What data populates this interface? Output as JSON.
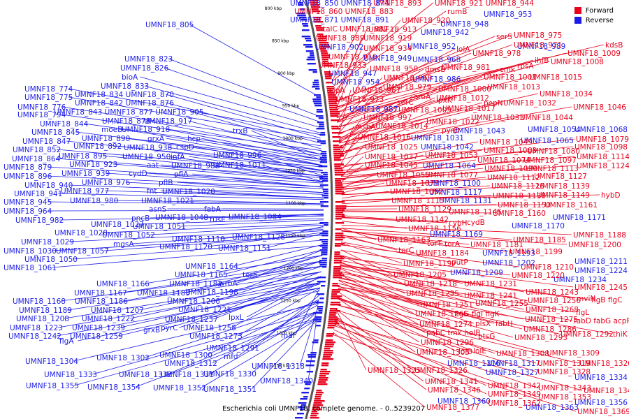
{
  "colors": {
    "forward": "#e8001c",
    "reverse": "#1c1ce8",
    "backbone": "#555555"
  },
  "legend": [
    {
      "label": "Forward",
      "color": "#e8001c"
    },
    {
      "label": "Reverse",
      "color": "#1c1ce8"
    }
  ],
  "caption": "Escherichia coli UMNF18, complete genome. - 0..5239207",
  "ticks": [
    "800 kbp",
    "850 kbp",
    "900 kbp",
    "950 kbp",
    "1000 kbp",
    "1050 kbp",
    "1100 kbp",
    "1150 kbp",
    "1200 kbp",
    "1250 kbp",
    "1300 kbp",
    "1350 kbp"
  ],
  "reverse_labels": [
    [
      "UMNF18_850 UMNF18_874",
      415,
      8
    ],
    [
      "UMNF18_805",
      208,
      39
    ],
    [
      "UMNF18_871 UMNF18_891",
      415,
      32
    ],
    [
      "UMNF18_942",
      602,
      50
    ],
    [
      "UMNF18_948",
      630,
      38
    ],
    [
      "UMNF18_953",
      692,
      24
    ],
    [
      "UMNF18_902",
      451,
      71
    ],
    [
      "UMNF18_952",
      583,
      70
    ],
    [
      "UMNF18_989",
      740,
      70
    ],
    [
      "UMNF18_949",
      520,
      87
    ],
    [
      "UMNF18_968",
      590,
      89
    ],
    [
      "UMNF18_947",
      470,
      109
    ],
    [
      "UMNF18_823",
      178,
      88
    ],
    [
      "UMNF18_826",
      172,
      101
    ],
    [
      "bioA",
      174,
      114
    ],
    [
      "UMNF18_954",
      474,
      121
    ],
    [
      "UMNF18_986",
      590,
      117
    ],
    [
      "UMNF18_833",
      144,
      127
    ],
    [
      "UMNF18_774",
      35,
      131
    ],
    [
      "UMNF18_834 UMNF18_870",
      107,
      139
    ],
    [
      "UMNF18_775",
      35,
      143
    ],
    [
      "UMNF18_842 UMNF18_876",
      107,
      151
    ],
    [
      "UMNF18_776",
      25,
      157
    ],
    [
      "UMNF18_987",
      500,
      160
    ],
    [
      "UMNF18_843 UMNF18_877 UMNF18_905",
      77,
      164
    ],
    [
      "UMNF18_794",
      25,
      168
    ],
    [
      "UMNF18_844",
      57,
      181
    ],
    [
      "UMNF18_878",
      146,
      177
    ],
    [
      "UMNF18_917",
      206,
      177
    ],
    [
      "UMNF18_845",
      45,
      193
    ],
    [
      "moeB",
      145,
      189
    ],
    [
      "UMNF18_918",
      174,
      189
    ],
    [
      "trxB",
      333,
      191
    ],
    [
      "UMNF18_1031",
      588,
      201
    ],
    [
      "UMNF18_1043",
      647,
      191
    ],
    [
      "UMNF18_1054",
      755,
      189
    ],
    [
      "UMNF18_1068",
      822,
      189
    ],
    [
      "UMNF18_847",
      32,
      206
    ],
    [
      "UMNF18_890",
      117,
      202
    ],
    [
      "grxA",
      211,
      202
    ],
    [
      "hcp",
      268,
      202
    ],
    [
      "UMNF18_852",
      18,
      218
    ],
    [
      "UMNF18_892",
      105,
      213
    ],
    [
      "UMNF18_938",
      177,
      215
    ],
    [
      "cspD",
      252,
      214
    ],
    [
      "UMNF18_1042",
      602,
      214
    ],
    [
      "UMNF18_1065",
      745,
      205
    ],
    [
      "UMNF18_864",
      17,
      231
    ],
    [
      "UMNF18_895",
      84,
      227
    ],
    [
      "UMNF18_950",
      175,
      228
    ],
    [
      "infA",
      244,
      228
    ],
    [
      "UMNF18_996",
      305,
      226
    ],
    [
      "UMNF18_879",
      5,
      243
    ],
    [
      "UMNF18_923",
      99,
      239
    ],
    [
      "aat",
      210,
      240
    ],
    [
      "UMNF18_988",
      245,
      241
    ],
    [
      "UMNF18_1011",
      305,
      240
    ],
    [
      "UMNF18_1064",
      605,
      241
    ],
    [
      "UMNF18_896",
      5,
      256
    ],
    [
      "UMNF18_939",
      88,
      252
    ],
    [
      "cydD",
      184,
      252
    ],
    [
      "pflA",
      249,
      253
    ],
    [
      "UMNF18_940",
      35,
      269
    ],
    [
      "UMNF18_976",
      117,
      265
    ],
    [
      "pflB",
      227,
      265
    ],
    [
      "UMNF18_1100",
      612,
      266
    ],
    [
      "UMNF18_941",
      20,
      281
    ],
    [
      "UMNF18_977",
      87,
      277
    ],
    [
      "fnt",
      210,
      277
    ],
    [
      "UMNF18_1020",
      232,
      278
    ],
    [
      "UMNF18_945",
      5,
      293
    ],
    [
      "UMNF18_980",
      100,
      291
    ],
    [
      "UMNF18_1021",
      202,
      291
    ],
    [
      "UMNF18_1117",
      614,
      279
    ],
    [
      "UMNF18_1131",
      628,
      291
    ],
    [
      "asnS",
      213,
      303
    ],
    [
      "fabA",
      292,
      303
    ],
    [
      "UMNF18_964",
      5,
      306
    ],
    [
      "pncB",
      188,
      316
    ],
    [
      "UMNF18_1048",
      222,
      315
    ],
    [
      "tusE",
      300,
      318
    ],
    [
      "UMNF18_1084",
      327,
      314
    ],
    [
      "UMNF18_982",
      22,
      319
    ],
    [
      "UMNF18_1027",
      130,
      325
    ],
    [
      "UMNF18_1051",
      190,
      328
    ],
    [
      "UMNF18_1028",
      78,
      337
    ],
    [
      "UMNF18_1052",
      146,
      340
    ],
    [
      "UMNF18_1110",
      246,
      346
    ],
    [
      "UMNF18_1128",
      332,
      343
    ],
    [
      "UMNF18_1170",
      732,
      327
    ],
    [
      "UMNF18_1169",
      615,
      339
    ],
    [
      "UMNF18_1029",
      30,
      350
    ],
    [
      "mgsA",
      162,
      353
    ],
    [
      "UMNF18_1030",
      5,
      363
    ],
    [
      "UMNF18_1057",
      80,
      363
    ],
    [
      "UMNF18_1120",
      228,
      357
    ],
    [
      "UMNF18_1151",
      312,
      359
    ],
    [
      "UMNF18_1171",
      791,
      315
    ],
    [
      "UMNF18_1050",
      35,
      375
    ],
    [
      "UMNF18_1193",
      690,
      366
    ],
    [
      "UMNF18_1061",
      5,
      387
    ],
    [
      "UMNF18_1164",
      265,
      385
    ],
    [
      "UMNF18_1202",
      690,
      380
    ],
    [
      "UMNF18_1165",
      250,
      397
    ],
    [
      "torS",
      347,
      397
    ],
    [
      "UMNF18_1209",
      644,
      394
    ],
    [
      "UMNF18_1211",
      822,
      378
    ],
    [
      "UMNF18_1224",
      822,
      391
    ],
    [
      "UMNF18_1166",
      138,
      410
    ],
    [
      "UMNF18_1182",
      242,
      410
    ],
    [
      "wrbA",
      313,
      409
    ],
    [
      "UMNF18_1234",
      792,
      404
    ],
    [
      "UMNF18_1167",
      106,
      423
    ],
    [
      "UMNF18_1183",
      196,
      423
    ],
    [
      "UMNF18_1198",
      265,
      422
    ],
    [
      "UMNF18_1168",
      18,
      435
    ],
    [
      "UMNF18_1186",
      107,
      435
    ],
    [
      "UMNF18_1206",
      239,
      435
    ],
    [
      "UMNF18_1221",
      255,
      447
    ],
    [
      "UMNF18_1189",
      27,
      448
    ],
    [
      "UMNF18_1207",
      130,
      448
    ],
    [
      "lpxL",
      327,
      458
    ],
    [
      "UMNF18_1208",
      23,
      460
    ],
    [
      "UMNF18_1222",
      117,
      460
    ],
    [
      "UMNF18_1237",
      236,
      461
    ],
    [
      "UMNF18_1223",
      14,
      473
    ],
    [
      "UMNF18_1239",
      103,
      473
    ],
    [
      "grxB",
      205,
      476
    ],
    [
      "pyrC",
      230,
      473
    ],
    [
      "UMNF18_1258",
      262,
      473
    ],
    [
      "UMNF18_1242",
      12,
      485
    ],
    [
      "UMNF18_1259",
      100,
      485
    ],
    [
      "UMNF18_1273",
      271,
      485
    ],
    [
      "maf",
      402,
      484
    ],
    [
      "flgA",
      85,
      492
    ],
    [
      "UMNF18_1291",
      295,
      502
    ],
    [
      "UMNF18_1300",
      228,
      512
    ],
    [
      "mfd",
      320,
      514
    ],
    [
      "UMNF18_1302",
      138,
      516
    ],
    [
      "UMNF18_1312",
      235,
      524
    ],
    [
      "UMNF18_1304",
      36,
      521
    ],
    [
      "UMNF18_1316",
      640,
      524
    ],
    [
      "UMNF18_1317",
      697,
      524
    ],
    [
      "UMNF18_1318",
      360,
      528
    ],
    [
      "UMNF18_1330",
      291,
      539
    ],
    [
      "UMNF18_1333",
      63,
      540
    ],
    [
      "UMNF18_1332",
      170,
      540
    ],
    [
      "UMNF18_1331",
      230,
      540
    ],
    [
      "UMNF18_1327",
      695,
      537
    ],
    [
      "UMNF18_1334",
      822,
      544
    ],
    [
      "UMNF18_1340",
      372,
      549
    ],
    [
      "UMNF18_1355",
      37,
      556
    ],
    [
      "UMNF18_1354",
      125,
      558
    ],
    [
      "UMNF18_1352",
      219,
      559
    ],
    [
      "UMNF18_1351",
      291,
      561
    ],
    [
      "UMNF18_1360",
      626,
      578
    ],
    [
      "UMNF18_1363",
      752,
      587
    ],
    [
      "UMNF18_1356",
      822,
      580
    ]
  ],
  "forward_labels": [
    [
      "UMNF18_893",
      534,
      8
    ],
    [
      "UMNF18_921 UMNF18_944",
      622,
      8
    ],
    [
      "UMNF18_860 UMNF18_883",
      421,
      20
    ],
    [
      "rumB",
      640,
      20
    ],
    [
      "UMNF18_920",
      575,
      33
    ],
    [
      "talC UMNF18_887",
      462,
      45
    ],
    [
      "UMNF18_913",
      527,
      46
    ],
    [
      "serS",
      710,
      56
    ],
    [
      "UMNF18_975",
      735,
      54
    ],
    [
      "UMNF18_889",
      452,
      58
    ],
    [
      "UMNF18_919",
      520,
      58
    ],
    [
      "UMNF18_971",
      735,
      68
    ],
    [
      "kdsB",
      866,
      68
    ],
    [
      "UMNF18_934",
      520,
      73
    ],
    [
      "lolA",
      653,
      74
    ],
    [
      "UMNF18_978",
      676,
      80
    ],
    [
      "UMNF18_1009",
      812,
      80
    ],
    [
      "UMNF18_916",
      470,
      85
    ],
    [
      "UMNF18_933",
      455,
      97
    ],
    [
      "ihfB",
      765,
      90
    ],
    [
      "UMNF18_1008",
      788,
      92
    ],
    [
      "UMNF18_959",
      529,
      102
    ],
    [
      "dmsB",
      608,
      103
    ],
    [
      "UMNF18_981",
      632,
      100
    ],
    [
      "cmk",
      715,
      103
    ],
    [
      "rpsA",
      740,
      98
    ],
    [
      "UMNF18_969",
      549,
      115
    ],
    [
      "UMNF18_1001",
      692,
      114
    ],
    [
      "UMNF18_1015",
      757,
      114
    ],
    [
      "UMNF18_979",
      548,
      128
    ],
    [
      "UMNF18_1000",
      627,
      131
    ],
    [
      "UMNF18_1013",
      697,
      128
    ],
    [
      "clpA",
      471,
      133
    ],
    [
      "UMNF18_967",
      504,
      133
    ],
    [
      "aroA",
      592,
      142
    ],
    [
      "UMNF18_1012",
      624,
      144
    ],
    [
      "UMNF18_1034",
      772,
      138
    ],
    [
      "UMNF18_973",
      480,
      146
    ],
    [
      "serC",
      568,
      150
    ],
    [
      "lpxK",
      624,
      147
    ],
    [
      "pepN",
      692,
      151
    ],
    [
      "UMNF18_1032",
      720,
      151
    ],
    [
      "UMNF18_1005",
      570,
      161
    ],
    [
      "UMNF18_1017",
      633,
      159
    ],
    [
      "UMNF18_1046",
      820,
      157
    ],
    [
      "UMNF18_997",
      520,
      172
    ],
    [
      "UMNF18_1022",
      610,
      178
    ],
    [
      "UMNF18_1033",
      674,
      172
    ],
    [
      "UMNF18_1044",
      744,
      172
    ],
    [
      "msbA",
      508,
      185
    ],
    [
      "UMNF18_1014",
      537,
      184
    ],
    [
      "pyrD",
      632,
      190
    ],
    [
      "UMNF18_1016",
      512,
      200
    ],
    [
      "UMNF18_1049",
      686,
      207
    ],
    [
      "UMNF18_1079",
      824,
      203
    ],
    [
      "UMNF18_1025",
      522,
      214
    ],
    [
      "UMNF18_1063",
      692,
      219
    ],
    [
      "UMNF18_1080",
      754,
      220
    ],
    [
      "UMNF18_1098",
      822,
      214
    ],
    [
      "UMNF18_1037",
      522,
      228
    ],
    [
      "UMNF18_1053",
      608,
      226
    ],
    [
      "UMNF18_1074",
      683,
      233
    ],
    [
      "UMNF18_1097",
      749,
      233
    ],
    [
      "UMNF18_1114",
      825,
      228
    ],
    [
      "UMNF18_1045",
      522,
      240
    ],
    [
      "UMNF18_1090",
      693,
      245
    ],
    [
      "UMNF18_1113",
      752,
      245
    ],
    [
      "UMNF18_1124",
      825,
      241
    ],
    [
      "UMNF18_1055",
      539,
      254
    ],
    [
      "UMNF18_1077",
      608,
      254
    ],
    [
      "UMNF18_1112",
      697,
      258
    ],
    [
      "UMNF18_1127",
      764,
      256
    ],
    [
      "UMNF18_1073",
      552,
      266
    ],
    [
      "UMNF18_1126",
      703,
      270
    ],
    [
      "UMNF18_1139",
      768,
      270
    ],
    [
      "UMNF18_1092",
      558,
      278
    ],
    [
      "UMNF18_1138",
      705,
      284
    ],
    [
      "UMNF18_1149",
      768,
      283
    ],
    [
      "hybD",
      860,
      283
    ],
    [
      "UMNF18_1115",
      560,
      291
    ],
    [
      "UMNF18_1150",
      712,
      297
    ],
    [
      "UMNF18_1161",
      779,
      297
    ],
    [
      "UMNF18_1129",
      570,
      303
    ],
    [
      "UMNF18_1145",
      642,
      307
    ],
    [
      "UMNF18_1160",
      705,
      309
    ],
    [
      "UMNF18_1142",
      566,
      318
    ],
    [
      "cybH",
      642,
      323
    ],
    [
      "cydB",
      668,
      322
    ],
    [
      "UMNF18_1156",
      584,
      331
    ],
    [
      "UMNF18_1188",
      820,
      340
    ],
    [
      "UMNF18_1163",
      540,
      347
    ],
    [
      "UMNF18_1185",
      734,
      347
    ],
    [
      "torT",
      611,
      352
    ],
    [
      "torA",
      636,
      353
    ],
    [
      "UMNF18_1181",
      673,
      354
    ],
    [
      "UMNF18_1200",
      813,
      354
    ],
    [
      "torC",
      570,
      362
    ],
    [
      "UMNF18_1184",
      595,
      366
    ],
    [
      "UMNF18_1199",
      729,
      364
    ],
    [
      "UMNF18_1197",
      577,
      381
    ],
    [
      "putP",
      646,
      379
    ],
    [
      "UMNF18_1210",
      745,
      386
    ],
    [
      "UMNF18_1205",
      563,
      397
    ],
    [
      "UMNF18_1220",
      732,
      398
    ],
    [
      "UMNF18_1218",
      578,
      410
    ],
    [
      "UMNF18_1231",
      664,
      410
    ],
    [
      "UMNF18_1245",
      822,
      415
    ],
    [
      "UMNF18_1235",
      581,
      424
    ],
    [
      "UMNF18_1241",
      664,
      427
    ],
    [
      "UMNF18_1243",
      752,
      422
    ],
    [
      "mviN",
      825,
      431
    ],
    [
      "UMNF18_1256",
      755,
      434
    ],
    [
      "flgB flgC",
      846,
      433
    ],
    [
      "UMNF18_1251",
      601,
      440
    ],
    [
      "UMNF18_1255",
      680,
      438
    ],
    [
      "UMNF18_1265",
      594,
      453
    ],
    [
      "flgG flgI flgK",
      650,
      453
    ],
    [
      "flgL",
      824,
      451
    ],
    [
      "UMNF18_1268",
      752,
      447
    ],
    [
      "UMNF18_1275",
      751,
      461
    ],
    [
      "fabD fabG acpP",
      821,
      463
    ],
    [
      "UMNF18_1274",
      600,
      468
    ],
    [
      "plsX",
      680,
      467
    ],
    [
      "fabH",
      709,
      467
    ],
    [
      "UMNF18_1286",
      749,
      475
    ],
    [
      "pabC tmk holB",
      610,
      480
    ],
    [
      "ptsG",
      684,
      485
    ],
    [
      "UMNF18_1293",
      736,
      487
    ],
    [
      "UMNF18_1292",
      802,
      482
    ],
    [
      "thiK",
      877,
      482
    ],
    [
      "UMNF18_1296",
      602,
      494
    ],
    [
      "UMNF18_1305",
      596,
      508
    ],
    [
      "lolD",
      656,
      507
    ],
    [
      "lolE",
      677,
      506
    ],
    [
      "UMNF18_1308",
      710,
      510
    ],
    [
      "UMNF18_1309",
      782,
      509
    ],
    [
      "UMNF18_1319",
      769,
      524
    ],
    [
      "UMNF18_1320",
      829,
      524
    ],
    [
      "UMNF18_1325",
      526,
      534
    ],
    [
      "UMNF18_1326",
      593,
      534
    ],
    [
      "UMNF18_1328",
      769,
      536
    ],
    [
      "UMNF18_1341",
      608,
      550
    ],
    [
      "UMNF18_1342",
      698,
      556
    ],
    [
      "UMNF18_1343",
      770,
      559
    ],
    [
      "UMNF18_1344",
      835,
      563
    ],
    [
      "UMNF18_1346",
      612,
      562
    ],
    [
      "UMNF18_1349",
      698,
      568
    ],
    [
      "UMNF18_1353",
      770,
      572
    ],
    [
      "UMNF18_1362",
      698,
      581
    ],
    [
      "UMNF18_1369",
      826,
      593
    ],
    [
      "UMNF18_1377",
      610,
      587
    ]
  ]
}
